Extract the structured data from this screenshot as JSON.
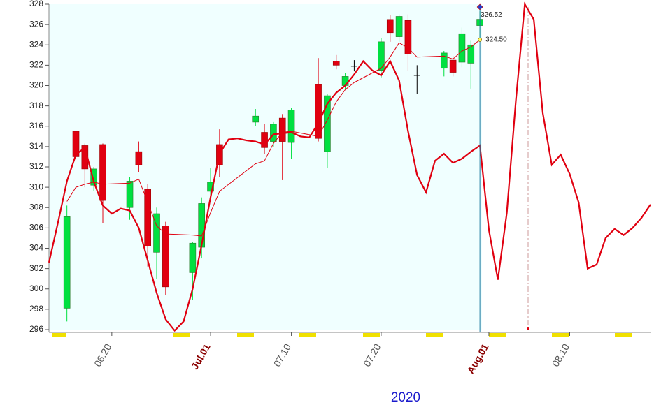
{
  "chart_data": {
    "type": "candlestick",
    "x": [
      "2020-06-15",
      "2020-06-16",
      "2020-06-17",
      "2020-06-18",
      "2020-06-19",
      "2020-06-22",
      "2020-06-23",
      "2020-06-24",
      "2020-06-25",
      "2020-06-26",
      "2020-06-29",
      "2020-06-30",
      "2020-07-01",
      "2020-07-02",
      "2020-07-06",
      "2020-07-07",
      "2020-07-08",
      "2020-07-09",
      "2020-07-10",
      "2020-07-13",
      "2020-07-14",
      "2020-07-15",
      "2020-07-16",
      "2020-07-17",
      "2020-07-20",
      "2020-07-21",
      "2020-07-22",
      "2020-07-23",
      "2020-07-24",
      "2020-07-27",
      "2020-07-28",
      "2020-07-29",
      "2020-07-30",
      "2020-07-31"
    ],
    "open": [
      298.1,
      315.5,
      314.1,
      310.2,
      314.2,
      308.0,
      313.5,
      309.8,
      303.6,
      306.2,
      301.6,
      304.1,
      309.6,
      314.2,
      316.4,
      315.4,
      314.5,
      316.8,
      314.4,
      320.1,
      313.5,
      322.4,
      320.0,
      321.9,
      321.5,
      326.5,
      324.8,
      326.4,
      321.0,
      321.7,
      322.5,
      322.3,
      322.2,
      325.9
    ],
    "high": [
      308.2,
      315.6,
      314.3,
      312.0,
      314.3,
      311.0,
      314.5,
      310.3,
      308.0,
      306.6,
      304.6,
      309.0,
      311.9,
      315.7,
      317.7,
      316.2,
      316.4,
      317.2,
      317.8,
      322.7,
      319.2,
      323.0,
      321.2,
      322.5,
      324.7,
      326.9,
      327.0,
      327.0,
      322.0,
      323.4,
      322.9,
      325.7,
      324.4,
      327.3
    ],
    "low": [
      296.8,
      307.7,
      310.0,
      309.6,
      306.5,
      306.8,
      311.5,
      302.2,
      301.0,
      299.4,
      298.9,
      303.0,
      309.0,
      311.0,
      316.0,
      313.3,
      314.0,
      310.7,
      312.8,
      314.5,
      311.9,
      321.6,
      319.6,
      321.4,
      320.8,
      324.3,
      324.3,
      321.4,
      319.2,
      320.9,
      320.9,
      321.8,
      319.7,
      324.3
    ],
    "close": [
      307.1,
      313.0,
      311.8,
      311.8,
      308.7,
      310.6,
      312.2,
      304.2,
      307.4,
      300.2,
      304.5,
      308.4,
      310.5,
      312.2,
      317.0,
      313.9,
      316.2,
      314.5,
      317.6,
      314.8,
      319.0,
      322.0,
      320.9,
      321.9,
      324.3,
      325.2,
      326.8,
      323.1,
      321.0,
      323.2,
      321.3,
      325.1,
      324.0,
      326.52
    ],
    "up_color": "#00e040",
    "down_color": "#e00010",
    "ma": {
      "color": "#e00010",
      "values": [
        308.6,
        310.0,
        310.3,
        310.5,
        310.3,
        310.4,
        310.8,
        308.5,
        306.2,
        305.4,
        305.3,
        305.2,
        307.5,
        309.6,
        312.3,
        312.6,
        314.3,
        315.4,
        315.5,
        315.0,
        316.6,
        318.4,
        319.6,
        320.3,
        321.7,
        322.8,
        324.2,
        323.7,
        322.8,
        322.9,
        322.6,
        323.4,
        323.8,
        324.5
      ]
    },
    "forecast": {
      "color": "#e00010",
      "x": [
        "2020-06-13",
        "2020-06-14",
        "2020-06-15",
        "2020-06-16",
        "2020-06-17",
        "2020-06-18",
        "2020-06-19",
        "2020-06-20",
        "2020-06-21",
        "2020-06-22",
        "2020-06-23",
        "2020-06-24",
        "2020-06-25",
        "2020-06-26",
        "2020-06-27",
        "2020-06-28",
        "2020-06-29",
        "2020-06-30",
        "2020-07-01",
        "2020-07-02",
        "2020-07-03",
        "2020-07-04",
        "2020-07-05",
        "2020-07-06",
        "2020-07-07",
        "2020-07-08",
        "2020-07-09",
        "2020-07-10",
        "2020-07-11",
        "2020-07-12",
        "2020-07-13",
        "2020-07-14",
        "2020-07-15",
        "2020-07-16",
        "2020-07-17",
        "2020-07-18",
        "2020-07-19",
        "2020-07-20",
        "2020-07-21",
        "2020-07-22",
        "2020-07-23",
        "2020-07-24",
        "2020-07-25",
        "2020-07-26",
        "2020-07-27",
        "2020-07-28",
        "2020-07-29",
        "2020-07-30",
        "2020-07-31",
        "2020-08-01",
        "2020-08-02",
        "2020-08-03",
        "2020-08-04",
        "2020-08-05",
        "2020-08-06",
        "2020-08-07",
        "2020-08-08",
        "2020-08-09",
        "2020-08-10",
        "2020-08-11",
        "2020-08-12",
        "2020-08-13",
        "2020-08-14",
        "2020-08-15",
        "2020-08-16",
        "2020-08-17",
        "2020-08-18",
        "2020-08-19"
      ],
      "values": [
        302.6,
        306.5,
        310.6,
        313.2,
        313.9,
        310.5,
        308.2,
        307.4,
        307.9,
        307.7,
        306.0,
        302.8,
        299.6,
        297.0,
        295.9,
        296.8,
        300.0,
        304.3,
        309.0,
        313.3,
        314.7,
        314.8,
        314.6,
        314.5,
        314.2,
        315.2,
        315.3,
        315.4,
        315.0,
        314.9,
        316.3,
        318.2,
        319.3,
        320.0,
        321.1,
        322.4,
        321.5,
        321.0,
        322.4,
        320.5,
        315.5,
        311.2,
        309.5,
        312.6,
        313.3,
        312.4,
        312.8,
        313.5,
        314.1,
        305.8,
        300.9,
        307.5,
        318.5,
        328.0,
        326.5,
        317.3,
        312.2,
        313.2,
        311.3,
        308.5,
        302.0,
        302.4,
        305.0,
        305.9,
        305.3,
        306.0,
        307.0,
        308.3
      ]
    },
    "annotations": [
      {
        "value": 326.52,
        "label": "326.52"
      },
      {
        "value": 324.5,
        "label": "324.50"
      }
    ],
    "xlim": [
      "2020-06-13",
      "2020-08-19"
    ],
    "xticks": [
      {
        "value": "2020-06-20",
        "label": "06.20"
      },
      {
        "value": "2020-07-01",
        "label": "Jul.01"
      },
      {
        "value": "2020-07-10",
        "label": "07.10"
      },
      {
        "value": "2020-07-20",
        "label": "07.20"
      },
      {
        "value": "2020-08-01",
        "label": "Aug.01"
      },
      {
        "value": "2020-08-10",
        "label": "08.10"
      }
    ],
    "xlabel": "2020",
    "ylim": [
      296,
      328
    ],
    "yticks": [
      296,
      298,
      300,
      302,
      304,
      306,
      308,
      310,
      312,
      314,
      316,
      318,
      320,
      322,
      324,
      326,
      328
    ]
  }
}
